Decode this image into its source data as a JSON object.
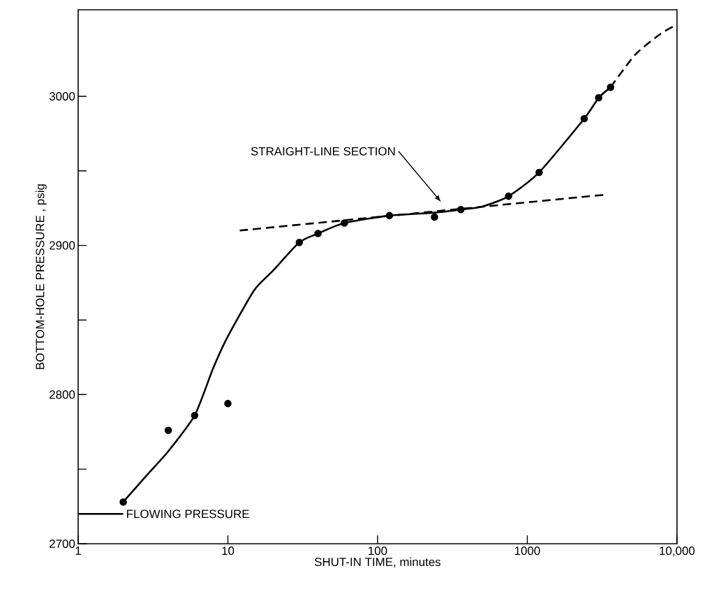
{
  "chart_data": {
    "type": "scatter",
    "xlabel": "SHUT-IN TIME, minutes",
    "ylabel": "BOTTOM-HOLE PRESSURE , psig",
    "log": "x",
    "grid": false,
    "xlim": [
      1,
      10000
    ],
    "ylim": [
      2700,
      3058
    ],
    "xticks": [
      1,
      10,
      100,
      1000,
      {
        "value": 10000,
        "label": "10,000"
      }
    ],
    "yticks": [
      2700,
      {
        "value": 2750,
        "label": null
      },
      2800,
      {
        "value": 2850,
        "label": null
      },
      2900,
      {
        "value": 2950,
        "label": null
      },
      3000
    ],
    "annotations": [
      "STRAIGHT-LINE SECTION"
    ],
    "series": [
      {
        "color": "#000000",
        "marker": "circle",
        "x": [
          2,
          4,
          6,
          10,
          30,
          40,
          60,
          120,
          240,
          360,
          750,
          1200,
          2400,
          3000,
          3600
        ],
        "values": [
          2728,
          2776,
          2786,
          2794,
          2902,
          2908,
          2915,
          2920,
          2919,
          2924,
          2933,
          2949,
          2985,
          2999,
          3006
        ]
      },
      {
        "type": "line",
        "color": "#000000",
        "marker": "none",
        "line_style": "solid",
        "x": [
          2,
          3,
          4,
          6,
          8,
          10,
          15,
          20,
          30,
          40,
          60,
          120,
          240,
          360,
          500,
          750,
          1200,
          2400,
          3000,
          3600
        ],
        "values": [
          2728,
          2748,
          2762,
          2786,
          2818,
          2839,
          2870,
          2883,
          2902,
          2908,
          2915,
          2920,
          2922,
          2924,
          2926,
          2933,
          2949,
          2985,
          2999,
          3006
        ]
      },
      {
        "type": "line",
        "color": "#000000",
        "marker": "none",
        "line_style": "dashed",
        "x": [
          3600,
          5270,
          7800,
          10000
        ],
        "values": [
          3006,
          3028,
          3042,
          3048
        ]
      },
      {
        "type": "line",
        "color": "#000000",
        "marker": "none",
        "line_style": "dashed",
        "x": [
          12,
          3300
        ],
        "values": [
          2910,
          2934
        ]
      },
      {
        "type": "line",
        "color": "#000000",
        "marker": "none",
        "line_style": "solid",
        "name": "FLOWING PRESSURE",
        "x": [
          1,
          2
        ],
        "values": [
          2720,
          2720
        ]
      }
    ]
  }
}
